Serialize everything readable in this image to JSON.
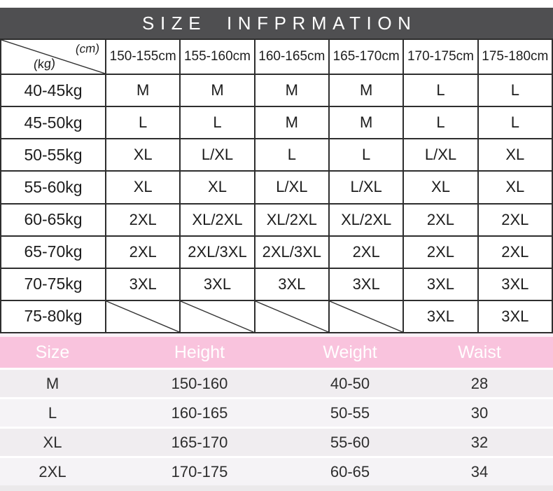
{
  "title": "SIZE INFPRMATION",
  "colors": {
    "title_bar_bg": "#4f4f51",
    "title_text": "#ffffff",
    "table_border": "#2e2e2e",
    "table_text": "#1d1d1d",
    "pink_header_bg": "#f9c3dd",
    "pink_header_text": "#ffffff",
    "row_bg": "#f0edf0",
    "row_bg_alt": "#f5f3f6",
    "bottom_strip": "#ebe9eb"
  },
  "chart_data": [
    {
      "type": "table",
      "name": "size_matrix",
      "corner": {
        "column_unit": "(cm)",
        "row_unit": "(kg)"
      },
      "columns": [
        "150-155cm",
        "155-160cm",
        "160-165cm",
        "165-170cm",
        "170-175cm",
        "175-180cm"
      ],
      "rows": [
        {
          "label": "40-45kg",
          "cells": [
            "M",
            "M",
            "M",
            "M",
            "L",
            "L"
          ]
        },
        {
          "label": "45-50kg",
          "cells": [
            "L",
            "L",
            "M",
            "M",
            "L",
            "L"
          ]
        },
        {
          "label": "50-55kg",
          "cells": [
            "XL",
            "L/XL",
            "L",
            "L",
            "L/XL",
            "XL"
          ]
        },
        {
          "label": "55-60kg",
          "cells": [
            "XL",
            "XL",
            "L/XL",
            "L/XL",
            "XL",
            "XL"
          ]
        },
        {
          "label": "60-65kg",
          "cells": [
            "2XL",
            "XL/2XL",
            "XL/2XL",
            "XL/2XL",
            "2XL",
            "2XL"
          ]
        },
        {
          "label": "65-70kg",
          "cells": [
            "2XL",
            "2XL/3XL",
            "2XL/3XL",
            "2XL",
            "2XL",
            "2XL"
          ]
        },
        {
          "label": "70-75kg",
          "cells": [
            "3XL",
            "3XL",
            "3XL",
            "3XL",
            "3XL",
            "3XL"
          ]
        },
        {
          "label": "75-80kg",
          "cells": [
            null,
            null,
            null,
            null,
            "3XL",
            "3XL"
          ]
        }
      ],
      "empty_cell_style": "diagonal-slash"
    },
    {
      "type": "table",
      "name": "measurements",
      "headers": [
        "Size",
        "Height",
        "Weight",
        "Waist"
      ],
      "rows": [
        [
          "M",
          "150-160",
          "40-50",
          "28"
        ],
        [
          "L",
          "160-165",
          "50-55",
          "30"
        ],
        [
          "XL",
          "165-170",
          "55-60",
          "32"
        ],
        [
          "2XL",
          "170-175",
          "60-65",
          "34"
        ]
      ]
    }
  ]
}
